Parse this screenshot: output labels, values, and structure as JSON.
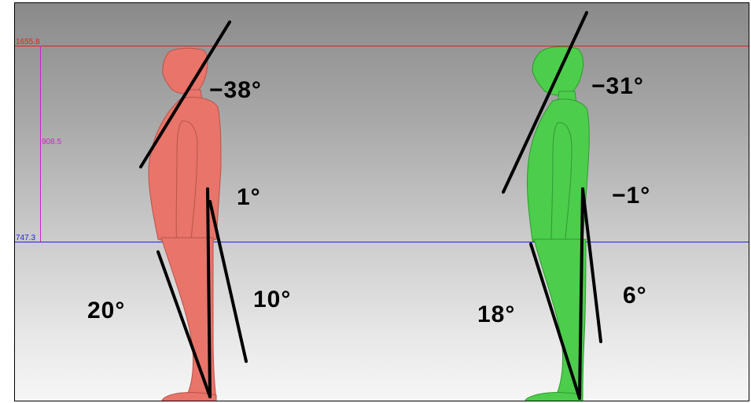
{
  "measurements": {
    "top_line_value": "1655.8",
    "middle_span_value": "908.5",
    "waist_line_value": "747.3",
    "top_line_color": "#e02020",
    "waist_line_color": "#2020e0",
    "span_color": "#d020d0"
  },
  "subject_left": {
    "color": "#e8746a",
    "neck_angle": "−38°",
    "trunk_angle": "1°",
    "thigh_angle": "10°",
    "shank_angle": "20°"
  },
  "subject_right": {
    "color": "#4ccd4c",
    "neck_angle": "−31°",
    "trunk_angle": "−1°",
    "thigh_angle": "6°",
    "shank_angle": "18°"
  }
}
